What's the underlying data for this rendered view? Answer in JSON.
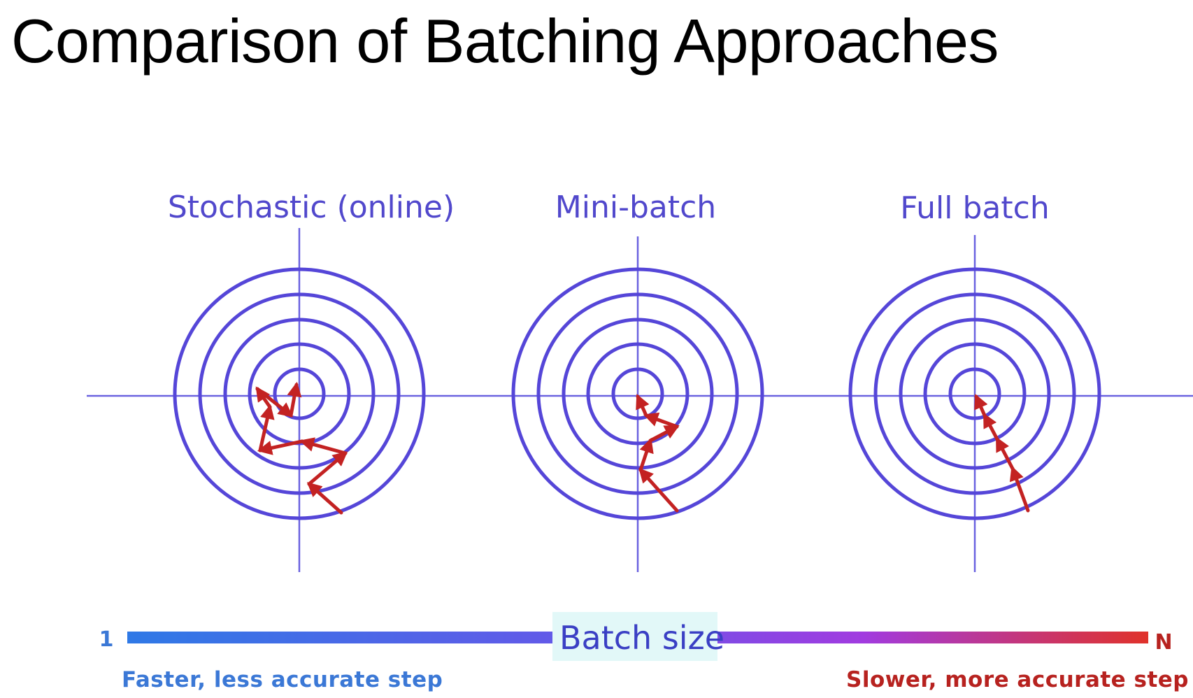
{
  "title": "Comparison of Batching Approaches",
  "panels": [
    {
      "id": "stochastic",
      "title": "Stochastic (online)",
      "steps": 9
    },
    {
      "id": "minibatch",
      "title": "Mini-batch",
      "steps": 4
    },
    {
      "id": "fullbatch",
      "title": "Full batch",
      "steps": 3
    }
  ],
  "axis": {
    "label": "Batch size",
    "start_label": "1",
    "end_label": "N",
    "left_caption": "Faster, less accurate step",
    "right_caption": "Slower, more accurate step"
  },
  "colors": {
    "contour": "#5546d8",
    "axis_line": "#6a62e0",
    "path": "#c32222",
    "gradient_start": "#2f79e6",
    "gradient_mid": "#a13be0",
    "gradient_end": "#e0322a",
    "left_caption": "#3b78d6",
    "right_caption": "#b7221f",
    "batch_label_bg": "#e2f8f8"
  }
}
